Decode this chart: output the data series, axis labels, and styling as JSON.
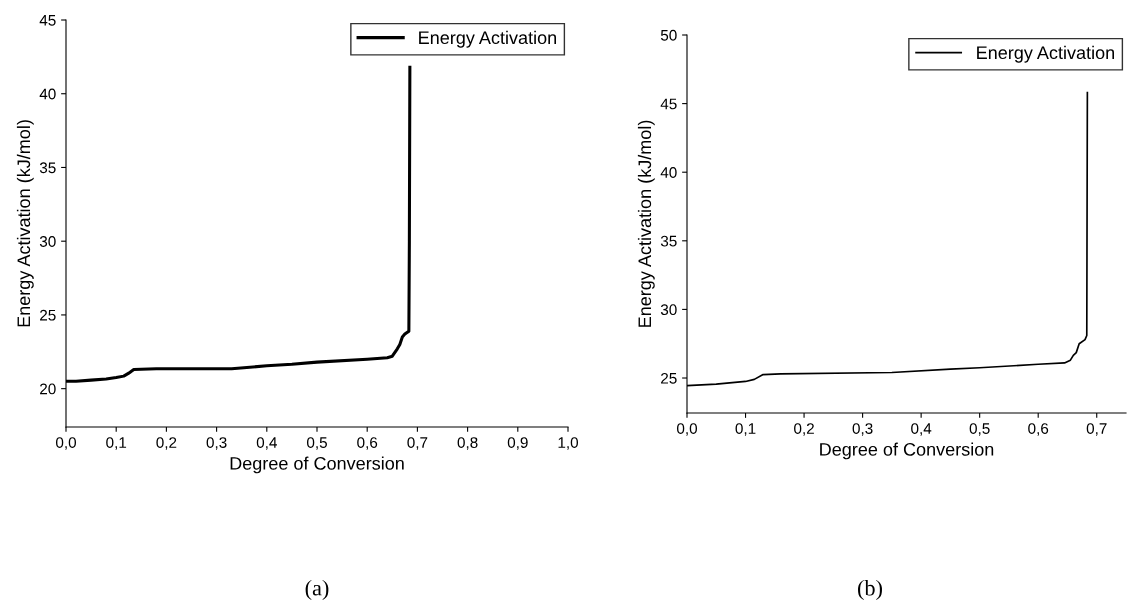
{
  "chart_data": [
    {
      "type": "line",
      "xlabel": "Degree of Conversion",
      "ylabel": "Energy Activation (kJ/mol)",
      "legend": "top right",
      "grid": false,
      "marker": "none",
      "line_style": "solid",
      "xlim": [
        0,
        1
      ],
      "ylim": [
        17.4,
        45
      ],
      "xticks": [
        {
          "value": 0,
          "label": "0,0"
        },
        {
          "value": 0.1,
          "label": "0,1"
        },
        {
          "value": 0.2,
          "label": "0,2"
        },
        {
          "value": 0.3,
          "label": "0,3"
        },
        {
          "value": 0.4,
          "label": "0,4"
        },
        {
          "value": 0.5,
          "label": "0,5"
        },
        {
          "value": 0.6,
          "label": "0,6"
        },
        {
          "value": 0.7,
          "label": "0,7"
        },
        {
          "value": 0.8,
          "label": "0,8"
        },
        {
          "value": 0.9,
          "label": "0,9"
        },
        {
          "value": 1.0,
          "label": "1,0"
        }
      ],
      "yticks": [
        20,
        25,
        30,
        35,
        40,
        45
      ],
      "annotations": [
        "(a)"
      ],
      "series": [
        {
          "name": "Energy Activation",
          "color": "#000000",
          "x": [
            0,
            0.02,
            0.05,
            0.08,
            0.1,
            0.115,
            0.125,
            0.135,
            0.18,
            0.33,
            0.4,
            0.45,
            0.5,
            0.6,
            0.64,
            0.65,
            0.66,
            0.665,
            0.67,
            0.675,
            0.683,
            0.684,
            0.685
          ],
          "values": [
            20.5,
            20.5,
            20.58,
            20.65,
            20.75,
            20.85,
            21.05,
            21.3,
            21.35,
            21.35,
            21.55,
            21.65,
            21.8,
            22.0,
            22.1,
            22.2,
            22.7,
            23.0,
            23.5,
            23.7,
            23.9,
            30,
            41.8
          ]
        }
      ]
    },
    {
      "type": "line",
      "xlabel": "Degree of Conversion",
      "ylabel": "Energy Activation (kJ/mol)",
      "legend": "top right",
      "grid": false,
      "marker": "none",
      "line_style": "solid",
      "xlim": [
        0,
        0.75
      ],
      "ylim": [
        22.45,
        50
      ],
      "xticks": [
        {
          "value": 0,
          "label": "0,0"
        },
        {
          "value": 0.1,
          "label": "0,1"
        },
        {
          "value": 0.2,
          "label": "0,2"
        },
        {
          "value": 0.3,
          "label": "0,3"
        },
        {
          "value": 0.4,
          "label": "0,4"
        },
        {
          "value": 0.5,
          "label": "0,5"
        },
        {
          "value": 0.6,
          "label": "0,6"
        },
        {
          "value": 0.7,
          "label": "0,7"
        }
      ],
      "yticks": [
        25,
        30,
        35,
        40,
        45,
        50
      ],
      "annotations": [
        "(b)"
      ],
      "series": [
        {
          "name": "Energy Activation",
          "color": "#000000",
          "x": [
            0,
            0.05,
            0.1,
            0.115,
            0.13,
            0.16,
            0.35,
            0.45,
            0.5,
            0.6,
            0.645,
            0.655,
            0.66,
            0.665,
            0.67,
            0.68,
            0.683,
            0.684
          ],
          "values": [
            24.45,
            24.55,
            24.75,
            24.9,
            25.25,
            25.3,
            25.4,
            25.65,
            25.75,
            26.0,
            26.1,
            26.3,
            26.65,
            26.85,
            27.5,
            27.8,
            28.1,
            45.8
          ]
        }
      ]
    }
  ]
}
